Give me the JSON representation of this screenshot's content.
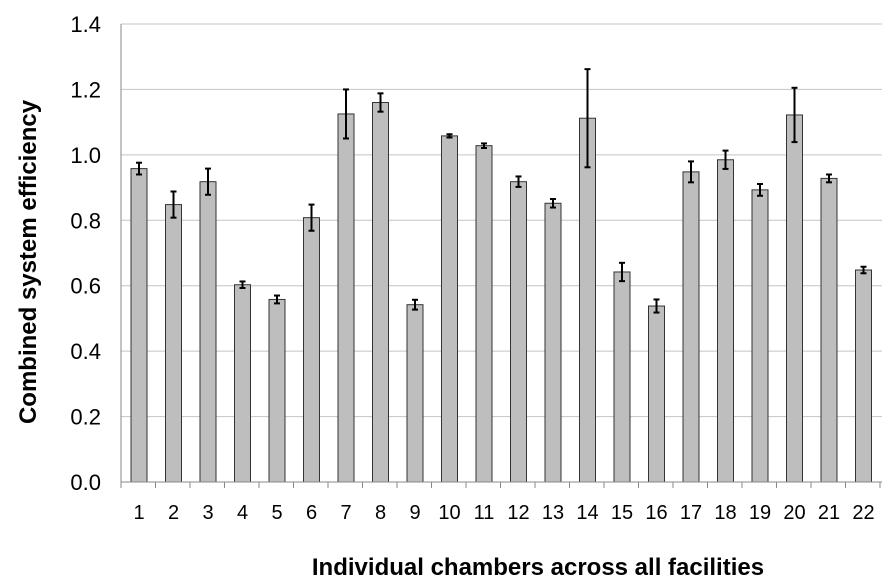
{
  "chart_data": {
    "type": "bar",
    "title": "",
    "xlabel": "Individual chambers across all facilities",
    "ylabel": "Combined system efficiency",
    "ylim": [
      0,
      1.4
    ],
    "yticks": [
      "0.0",
      "0.2",
      "0.4",
      "0.6",
      "0.8",
      "1.0",
      "1.2",
      "1.4"
    ],
    "grid": true,
    "bar_color": "#bebebe",
    "categories": [
      "1",
      "2",
      "3",
      "4",
      "5",
      "6",
      "7",
      "8",
      "9",
      "10",
      "11",
      "12",
      "13",
      "14",
      "15",
      "16",
      "17",
      "18",
      "19",
      "20",
      "21",
      "22"
    ],
    "values": [
      0.958,
      0.848,
      0.918,
      0.603,
      0.558,
      0.808,
      1.125,
      1.16,
      0.542,
      1.058,
      1.028,
      0.918,
      0.852,
      1.112,
      0.642,
      0.538,
      0.948,
      0.985,
      0.893,
      1.122,
      0.928,
      0.648
    ],
    "errors": [
      0.018,
      0.04,
      0.04,
      0.01,
      0.012,
      0.04,
      0.075,
      0.028,
      0.015,
      0.005,
      0.007,
      0.016,
      0.013,
      0.15,
      0.028,
      0.02,
      0.032,
      0.028,
      0.018,
      0.083,
      0.012,
      0.01
    ]
  }
}
